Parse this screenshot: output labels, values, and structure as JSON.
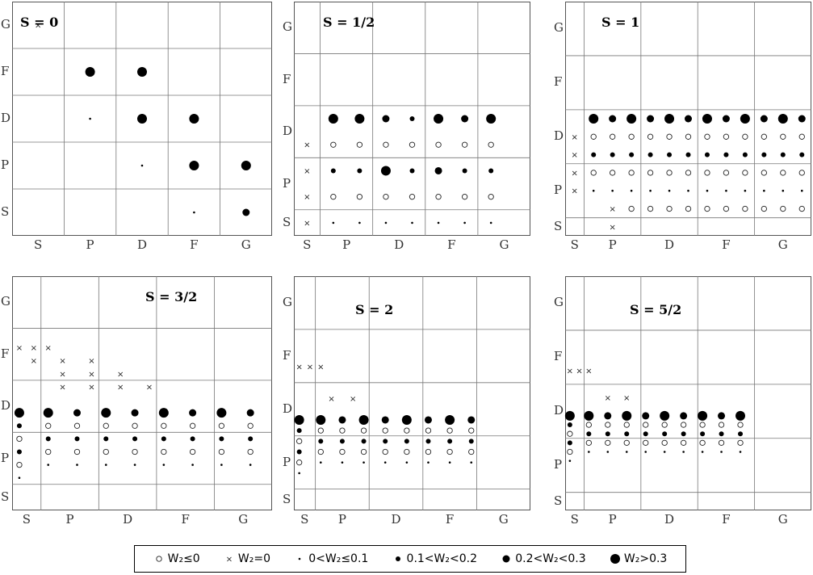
{
  "shells": [
    "S",
    "P",
    "D",
    "F",
    "G"
  ],
  "legend": [
    {
      "key": "neg",
      "label": "W₂≤0"
    },
    {
      "key": "zero",
      "label": "W₂=0"
    },
    {
      "key": "s1",
      "label": "0<W₂≤0.1"
    },
    {
      "key": "s2",
      "label": "0.1<W₂<0.2"
    },
    {
      "key": "s3",
      "label": "0.2<W₂<0.3"
    },
    {
      "key": "s4",
      "label": "W₂>0.3"
    }
  ],
  "panels": [
    {
      "title": "S = 0",
      "dims": [
        1,
        1,
        1,
        1,
        1
      ],
      "points": "1,3,s4;2,3,s4;2,2,s4;3,2,s4;3,1,s4;4,1,s4;4,0,s3;3,0,s1;2,1,s1;1,2,s1;0,4,x"
    },
    {
      "title": "S = 1/2",
      "dims": [
        1,
        2,
        2,
        2,
        2
      ],
      "points": "1,4,s4;1,3,e;1,2,s2;1,1,e;1,0,s1;0,3,x;0,2,x;0,1,x;0,0,x;2,4,s4;2,3,e;2,2,s2;2,1,e;2,0,s1;3,4,s3;3,3,e;3,2,s4;3,1,e;3,0,s1;4,4,s2;4,3,e;4,2,s2;4,1,e;4,0,s1;5,4,s4;5,3,e;5,2,s3;5,1,e;5,0,s1;6,4,s3;6,3,e;6,2,s2;6,1,e;6,0,s1;7,4,s4;7,3,e;7,2,s2;7,1,e;7,0,s1"
    },
    {
      "title": "S = 1",
      "dims": [
        1,
        3,
        3,
        3,
        3
      ],
      "points": "1,6,s4;1,5,e;1,4,s2;1,3,e;1,2,s1;0,5,x;0,4,x;0,3,x;0,2,x;2,6,s3;2,5,e;2,4,s2;2,3,e;2,2,s1;2,1,x;2,0,x;3,6,s4;3,5,e;3,4,s2;3,3,e;3,2,s1;3,1,e;4,6,s3;4,5,e;4,4,s2;4,3,e;4,2,s1;4,1,e;5,6,s4;5,5,e;5,4,s2;5,3,e;5,2,s1;5,1,e;6,6,s3;6,5,e;6,4,s2;6,3,e;6,2,s1;6,1,e;7,6,s4;7,5,e;7,4,s2;7,3,e;7,2,s1;7,1,e;8,6,s3;8,5,e;8,4,s2;8,3,e;8,2,s1;8,1,e;9,6,s4;9,5,e;9,4,s2;9,3,e;9,2,s1;9,1,e;10,6,s3;10,5,e;10,4,s2;10,3,e;10,2,s1;10,1,e;11,6,s4;11,5,e;11,4,s2;11,3,e;11,2,s1;11,1,e;12,6,s3;12,5,e;12,4,s2;12,3,e;12,2,s1;12,1,e"
    },
    {
      "title": "S = 3/2",
      "dims": [
        2,
        4,
        4,
        4,
        4
      ],
      "points": "0,7,s4;0,6,s2;0,5,e;0,4,s2;0,3,e;0,2,s1;2,7,s4;2,6,e;2,5,s2;2,4,e;2,3,s1;4,7,s3;4,6,e;4,5,s2;4,4,e;4,3,s1;6,7,s4;6,6,e;6,5,s2;6,4,e;6,3,s1;8,7,s3;8,6,e;8,5,s2;8,4,e;8,3,s1;10,7,s4;10,6,e;10,5,s2;10,4,e;10,3,s1;12,7,s3;12,6,e;12,5,s2;12,4,e;12,3,s1;14,7,s4;14,6,e;14,5,s2;14,4,e;14,3,s1;16,7,s3;16,6,e;16,5,s2;16,4,e;16,3,s1;0,12,x;1,12,x;2,12,x;1,11,x;3,11,x;5,11,x;3,10,x;5,10,x;7,10,x;3,9,x;5,9,x;7,9,x;9,9,x"
    },
    {
      "title": "S = 2",
      "dims": [
        2,
        5,
        5,
        5,
        5
      ],
      "points": "0,8,s4;0,7,s2;0,6,e;0,5,s2;0,4,e;0,3,s1;2,8,s4;2,7,e;2,6,s2;2,5,e;2,4,s1;4,8,s3;4,7,e;4,6,s2;4,5,e;4,4,s1;6,8,s4;6,7,e;6,6,s2;6,5,e;6,4,s1;8,8,s3;8,7,e;8,6,s2;8,5,e;8,4,s1;10,8,s4;10,7,e;10,6,s2;10,5,e;10,4,s1;12,8,s3;12,7,e;12,6,s2;12,5,e;12,4,s1;14,8,s4;14,7,e;14,6,s2;14,5,e;14,4,s1;16,8,s3;16,7,e;16,6,s2;16,5,e;16,4,s1;0,13,x;1,13,x;2,13,x;3,10,x;5,10,x"
    },
    {
      "title": "S = 5/2",
      "dims": [
        2,
        6,
        6,
        6,
        6
      ],
      "points": "0,10,s4;0,9,s2;0,8,e;0,7,s2;0,6,e;0,5,s1;2,10,s4;2,9,e;2,8,s2;2,7,e;2,6,s1;4,10,s3;4,9,e;4,8,s2;4,7,e;4,6,s1;6,10,s4;6,9,e;6,8,s2;6,7,e;6,6,s1;8,10,s3;8,9,e;8,8,s2;8,7,e;8,6,s1;10,10,s4;10,9,e;10,8,s2;10,7,e;10,6,s1;12,10,s3;12,9,e;12,8,s2;12,7,e;12,6,s1;14,10,s4;14,9,e;14,8,s2;14,7,e;14,6,s1;16,10,s3;16,9,e;16,8,s2;16,7,e;16,6,s1;18,10,s4;18,9,e;18,8,s2;18,7,e;18,6,s1;0,15,x;1,15,x;2,15,x;4,12,x;6,12,x"
    }
  ]
}
